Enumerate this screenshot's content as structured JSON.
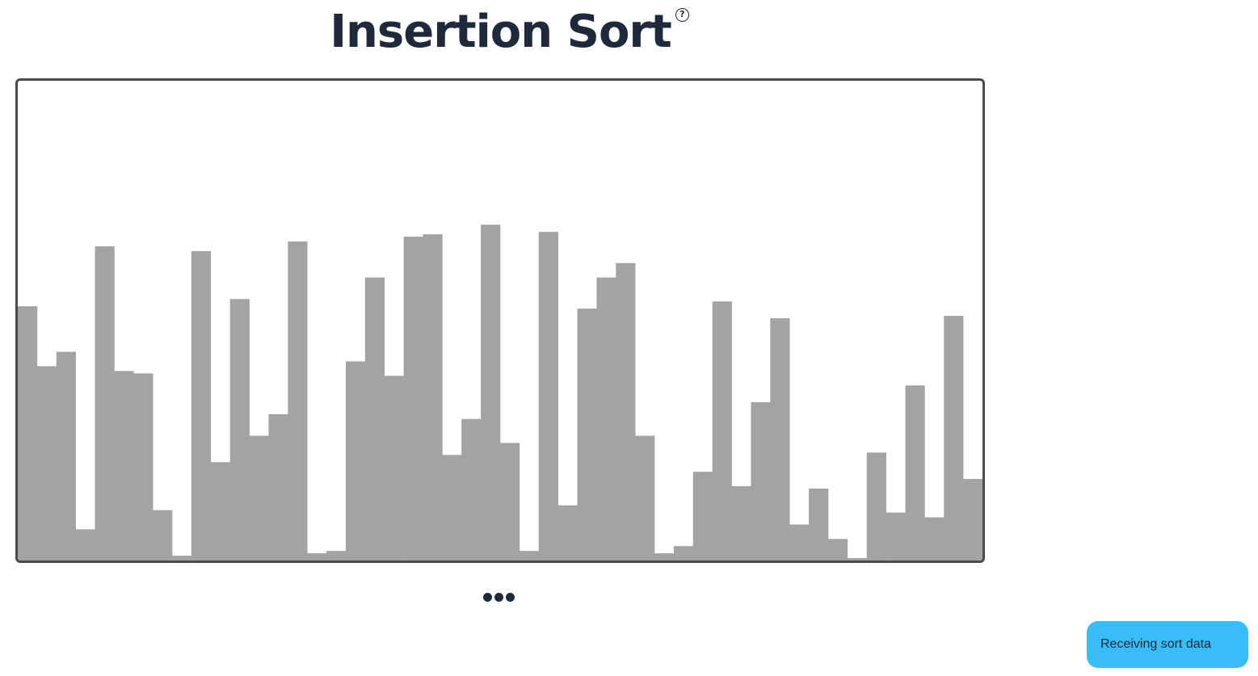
{
  "header": {
    "title": "Insertion Sort",
    "help_icon": "question-circle-icon",
    "help_glyph": "?"
  },
  "chart_data": {
    "type": "bar",
    "ylim": [
      0,
      100
    ],
    "values": [
      53,
      40.5,
      43.5,
      6.5,
      65.5,
      39.5,
      39,
      10.5,
      1,
      64.5,
      20.5,
      54.5,
      26,
      30.5,
      66.5,
      1.5,
      2,
      41.5,
      59,
      38.5,
      67.5,
      68,
      22,
      29.5,
      70,
      24.5,
      2,
      68.5,
      11.5,
      52.5,
      59,
      62,
      26,
      1.5,
      3,
      18.5,
      54,
      15.5,
      33,
      50.5,
      7.5,
      15,
      4.5,
      0.5,
      22.5,
      10,
      36.5,
      9,
      51,
      17
    ],
    "bar_color": "#a3a3a3"
  },
  "controls": {
    "more_icon": "ellipsis-icon"
  },
  "toast": {
    "message": "Receiving sort data",
    "color": "#38bdf8"
  }
}
